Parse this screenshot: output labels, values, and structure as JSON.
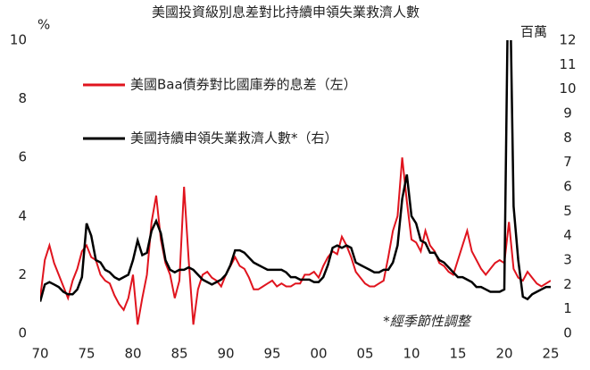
{
  "chart_data": {
    "type": "line",
    "title": "美國投資級別息差對比持續申領失業救濟人數",
    "y_label": "%",
    "y2_label": "百萬",
    "annotation": "*經季節性調整",
    "x": [
      1970,
      1970.5,
      1971,
      1971.5,
      1972,
      1972.5,
      1973,
      1973.5,
      1974,
      1974.5,
      1975,
      1975.5,
      1976,
      1976.5,
      1977,
      1977.5,
      1978,
      1978.5,
      1979,
      1979.5,
      1980,
      1980.5,
      1981,
      1981.5,
      1982,
      1982.5,
      1983,
      1983.5,
      1984,
      1984.5,
      1985,
      1985.5,
      1986,
      1986.5,
      1987,
      1987.5,
      1988,
      1988.5,
      1989,
      1989.5,
      1990,
      1990.5,
      1991,
      1991.5,
      1992,
      1992.5,
      1993,
      1993.5,
      1994,
      1994.5,
      1995,
      1995.5,
      1996,
      1996.5,
      1997,
      1997.5,
      1998,
      1998.5,
      1999,
      1999.5,
      2000,
      2000.5,
      2001,
      2001.5,
      2002,
      2002.5,
      2003,
      2003.5,
      2004,
      2004.5,
      2005,
      2005.5,
      2006,
      2006.5,
      2007,
      2007.5,
      2008,
      2008.5,
      2009,
      2009.5,
      2010,
      2010.5,
      2011,
      2011.5,
      2012,
      2012.5,
      2013,
      2013.5,
      2014,
      2014.5,
      2015,
      2015.5,
      2016,
      2016.5,
      2017,
      2017.5,
      2018,
      2018.5,
      2019,
      2019.5,
      2020,
      2020.5,
      2021,
      2021.5,
      2022,
      2022.5,
      2023,
      2023.5,
      2024,
      2024.5,
      2025
    ],
    "series": [
      {
        "name": "美國Baa債券對比國庫券的息差（左）",
        "color": "#e0141e",
        "values": [
          1.2,
          2.5,
          3.0,
          2.4,
          2.0,
          1.6,
          1.2,
          1.8,
          2.2,
          2.8,
          3.0,
          2.6,
          2.5,
          2.0,
          1.8,
          1.7,
          1.3,
          1.0,
          0.8,
          1.2,
          2.0,
          0.3,
          1.2,
          2.0,
          3.8,
          4.7,
          3.2,
          2.4,
          2.0,
          1.2,
          1.8,
          5.0,
          2.5,
          0.3,
          1.5,
          2.0,
          2.1,
          1.9,
          1.8,
          1.6,
          2.0,
          2.3,
          2.6,
          2.3,
          2.2,
          1.9,
          1.5,
          1.5,
          1.6,
          1.7,
          1.8,
          1.6,
          1.7,
          1.6,
          1.6,
          1.7,
          1.7,
          2.0,
          2.0,
          2.1,
          1.9,
          2.3,
          2.6,
          2.8,
          2.7,
          3.3,
          3.0,
          2.6,
          2.1,
          1.9,
          1.7,
          1.6,
          1.6,
          1.7,
          1.8,
          2.6,
          3.5,
          4.0,
          6.0,
          4.5,
          3.2,
          3.1,
          2.8,
          3.5,
          3.0,
          2.8,
          2.4,
          2.3,
          2.1,
          2.0,
          2.5,
          3.0,
          3.5,
          2.8,
          2.5,
          2.2,
          2.0,
          2.2,
          2.4,
          2.5,
          2.4,
          3.8,
          2.2,
          1.9,
          1.8,
          2.1,
          1.9,
          1.7,
          1.6,
          1.7,
          1.8
        ]
      },
      {
        "name": "美國持續申領失業救濟人數*（右）",
        "color": "#000000",
        "axis": "y2",
        "values": [
          1.3,
          2.0,
          2.1,
          2.0,
          1.9,
          1.7,
          1.6,
          1.6,
          1.8,
          2.3,
          4.5,
          4.0,
          3.0,
          2.9,
          2.6,
          2.5,
          2.3,
          2.2,
          2.3,
          2.4,
          3.0,
          3.8,
          3.2,
          3.3,
          4.2,
          4.6,
          4.1,
          3.0,
          2.6,
          2.5,
          2.6,
          2.6,
          2.7,
          2.6,
          2.4,
          2.2,
          2.1,
          2.0,
          2.1,
          2.2,
          2.4,
          2.8,
          3.4,
          3.4,
          3.3,
          3.1,
          2.9,
          2.8,
          2.7,
          2.6,
          2.6,
          2.6,
          2.6,
          2.5,
          2.3,
          2.3,
          2.2,
          2.2,
          2.2,
          2.1,
          2.1,
          2.3,
          2.8,
          3.5,
          3.6,
          3.5,
          3.6,
          3.5,
          2.9,
          2.8,
          2.7,
          2.6,
          2.5,
          2.5,
          2.6,
          2.6,
          2.9,
          3.6,
          5.5,
          6.5,
          4.8,
          4.5,
          3.8,
          3.7,
          3.3,
          3.3,
          3.0,
          2.9,
          2.7,
          2.5,
          2.3,
          2.3,
          2.2,
          2.1,
          1.9,
          1.9,
          1.8,
          1.7,
          1.7,
          1.7,
          1.8,
          17,
          5.2,
          3.0,
          1.5,
          1.4,
          1.6,
          1.7,
          1.8,
          1.9,
          1.9
        ]
      }
    ],
    "xlim": [
      1970,
      2025
    ],
    "xticks": [
      {
        "value": 1970,
        "label": "70"
      },
      {
        "value": 1975,
        "label": "75"
      },
      {
        "value": 1980,
        "label": "80"
      },
      {
        "value": 1985,
        "label": "85"
      },
      {
        "value": 1990,
        "label": "90"
      },
      {
        "value": 1995,
        "label": "95"
      },
      {
        "value": 2000,
        "label": "00"
      },
      {
        "value": 2005,
        "label": "05"
      },
      {
        "value": 2010,
        "label": "10"
      },
      {
        "value": 2015,
        "label": "15"
      },
      {
        "value": 2020,
        "label": "20"
      },
      {
        "value": 2025,
        "label": "25"
      }
    ],
    "ylim": [
      0,
      10
    ],
    "yticks": [
      0,
      2,
      4,
      6,
      8,
      10
    ],
    "y2lim": [
      0,
      12
    ],
    "y2ticks": [
      0,
      1,
      2,
      3,
      4,
      5,
      6,
      7,
      8,
      9,
      10,
      11,
      12
    ]
  }
}
